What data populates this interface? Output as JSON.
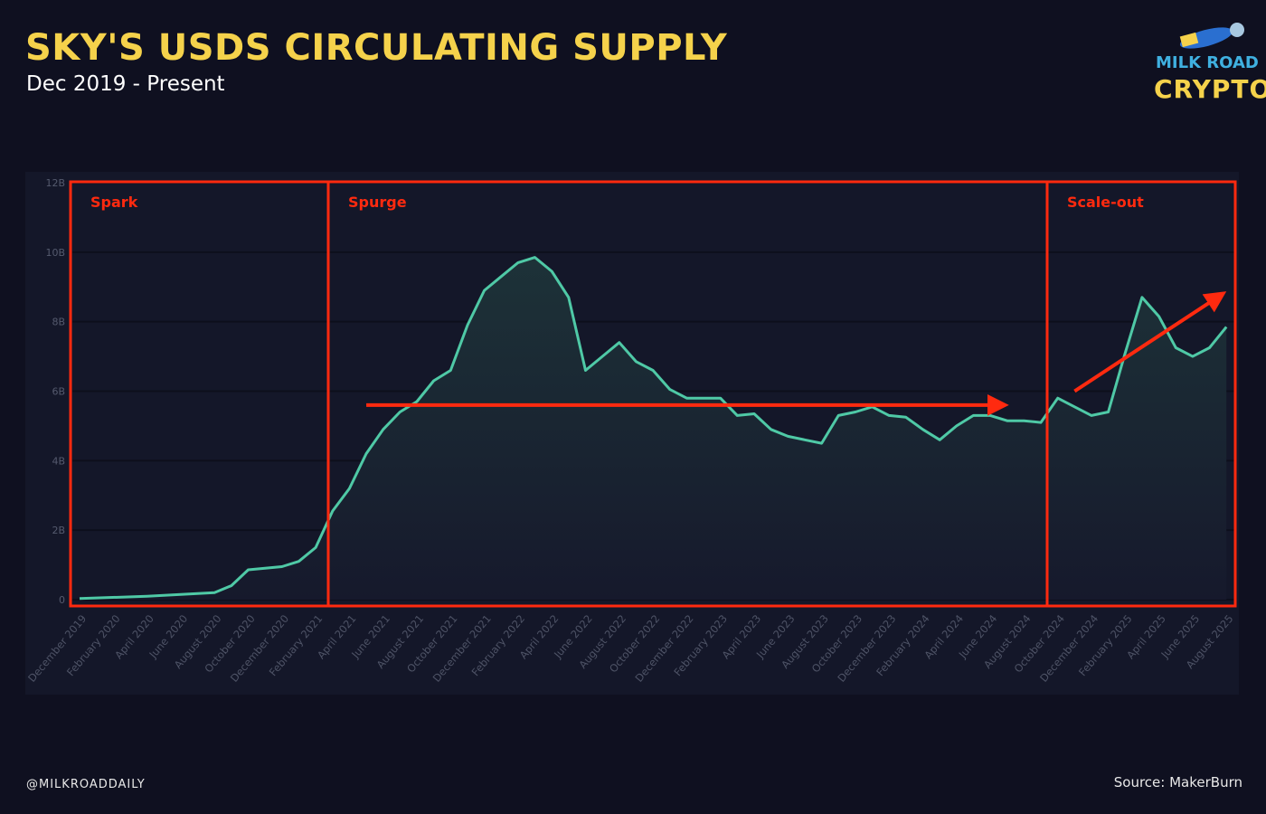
{
  "header": {
    "title": "SKY'S USDS CIRCULATING SUPPLY",
    "subtitle": "Dec 2019 - Present"
  },
  "footer": {
    "handle": "@MILKROADDAILY",
    "source": "Source: MakerBurn"
  },
  "logo": {
    "line1": "MILK ROAD",
    "line2": "CRYPTO"
  },
  "colors": {
    "title": "#f5d24b",
    "line": "#4fc9a6",
    "annotation": "#ff2a0f",
    "background": "#0f1020",
    "plot_background": "#141729"
  },
  "chart_data": {
    "type": "area",
    "title": "SKY'S USDS CIRCULATING SUPPLY",
    "subtitle": "Dec 2019 - Present",
    "xlabel": "",
    "ylabel": "",
    "ylim": [
      0,
      12000000000
    ],
    "yticks": [
      0,
      2000000000,
      4000000000,
      6000000000,
      8000000000,
      10000000000,
      12000000000
    ],
    "ytick_labels": [
      "0",
      "2B",
      "4B",
      "6B",
      "8B",
      "10B",
      "12B"
    ],
    "xtick_labels": [
      "December 2019",
      "February 2020",
      "April 2020",
      "June 2020",
      "August 2020",
      "October 2020",
      "December 2020",
      "February 2021",
      "April 2021",
      "June 2021",
      "August 2021",
      "October 2021",
      "December 2021",
      "February 2022",
      "April 2022",
      "June 2022",
      "August 2022",
      "October 2022",
      "December 2022",
      "February 2023",
      "April 2023",
      "June 2023",
      "August 2023",
      "October 2023",
      "December 2023",
      "February 2024",
      "April 2024",
      "June 2024",
      "August 2024",
      "October 2024",
      "December 2024",
      "February 2025",
      "April 2025",
      "June 2025",
      "August 2025"
    ],
    "grid": true,
    "series": [
      {
        "x": [
          "2019-12",
          "2020-04",
          "2020-08",
          "2020-09",
          "2020-10",
          "2020-12",
          "2021-01",
          "2021-02",
          "2021-03",
          "2021-04",
          "2021-05",
          "2021-06",
          "2021-07",
          "2021-08",
          "2021-09",
          "2021-10",
          "2021-11",
          "2021-12",
          "2022-01",
          "2022-02",
          "2022-03",
          "2022-04",
          "2022-05",
          "2022-06",
          "2022-07",
          "2022-08",
          "2022-09",
          "2022-10",
          "2022-11",
          "2022-12",
          "2023-01",
          "2023-02",
          "2023-03",
          "2023-04",
          "2023-05",
          "2023-06",
          "2023-07",
          "2023-08",
          "2023-09",
          "2023-10",
          "2023-11",
          "2023-12",
          "2024-01",
          "2024-02",
          "2024-03",
          "2024-04",
          "2024-05",
          "2024-06",
          "2024-07",
          "2024-08",
          "2024-09",
          "2024-10",
          "2024-11",
          "2024-12",
          "2025-01",
          "2025-02",
          "2025-03",
          "2025-04",
          "2025-05",
          "2025-06",
          "2025-07",
          "2025-08"
        ],
        "values": [
          0.03,
          0.1,
          0.2,
          0.4,
          0.86,
          0.95,
          1.1,
          1.5,
          2.55,
          3.2,
          4.2,
          4.9,
          5.4,
          5.7,
          6.3,
          6.6,
          7.9,
          8.9,
          9.3,
          9.7,
          9.85,
          9.45,
          8.7,
          6.6,
          7.0,
          7.4,
          6.85,
          6.6,
          6.05,
          5.8,
          5.8,
          5.8,
          5.3,
          5.35,
          4.9,
          4.7,
          4.6,
          4.5,
          5.3,
          5.4,
          5.55,
          5.3,
          5.25,
          4.9,
          4.6,
          5.0,
          5.3,
          5.3,
          5.15,
          5.15,
          5.1,
          5.8,
          5.55,
          5.3,
          5.4,
          7.1,
          8.7,
          8.15,
          7.25,
          7.0,
          7.25,
          7.85
        ],
        "unit": "billion"
      }
    ],
    "annotations": {
      "regions": [
        {
          "label": "Spark",
          "start": "2019-12",
          "end": "2021-03"
        },
        {
          "label": "Spurge",
          "start": "2021-03",
          "end": "2024-09"
        },
        {
          "label": "Scale-out",
          "start": "2024-09",
          "end": "2025-08"
        }
      ],
      "arrows": [
        {
          "direction": "flat",
          "from": [
            "2021-05",
            5.6
          ],
          "to": [
            "2024-07",
            5.6
          ]
        },
        {
          "direction": "up",
          "from": [
            "2024-11",
            6.0
          ],
          "to": [
            "2025-08",
            8.7
          ]
        }
      ]
    }
  }
}
